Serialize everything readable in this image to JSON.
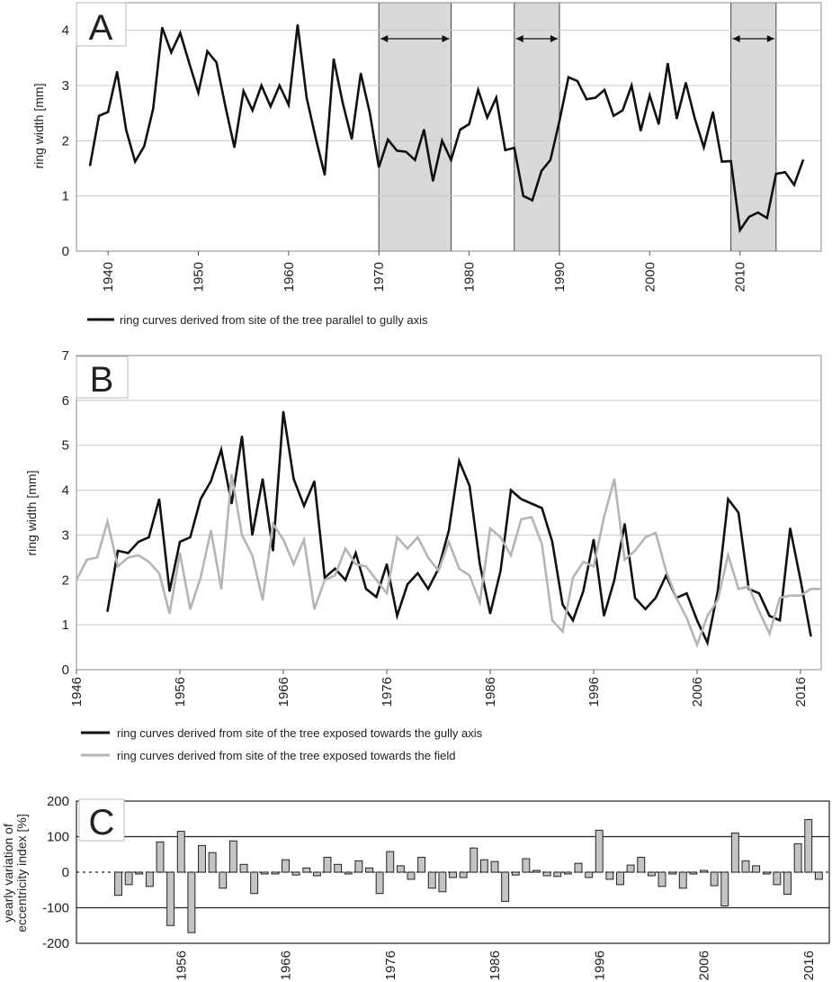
{
  "chart_data": [
    {
      "panel": "A",
      "type": "line",
      "ylabel": "ring width [mm]",
      "ylim": [
        0,
        4.5
      ],
      "yticks": [
        0,
        1,
        2,
        3,
        4
      ],
      "xlim": [
        1936.5,
        2019
      ],
      "xticks": [
        1940,
        1950,
        1960,
        1970,
        1980,
        1990,
        2000,
        2010
      ],
      "shaded_periods": [
        [
          1970,
          1978
        ],
        [
          1985,
          1990
        ],
        [
          2009,
          2014
        ]
      ],
      "series": [
        {
          "name": "ring curves derived from site of the tree parallel to gully axis",
          "color": "#111111",
          "x": [
            1938,
            1939,
            1940,
            1941,
            1942,
            1943,
            1944,
            1945,
            1946,
            1947,
            1948,
            1949,
            1950,
            1951,
            1952,
            1953,
            1954,
            1955,
            1956,
            1957,
            1958,
            1959,
            1960,
            1961,
            1962,
            1963,
            1964,
            1965,
            1966,
            1967,
            1968,
            1969,
            1970,
            1971,
            1972,
            1973,
            1974,
            1975,
            1976,
            1977,
            1978,
            1979,
            1980,
            1981,
            1982,
            1983,
            1984,
            1985,
            1986,
            1987,
            1988,
            1989,
            1990,
            1991,
            1992,
            1993,
            1994,
            1995,
            1996,
            1997,
            1998,
            1999,
            2000,
            2001,
            2002,
            2003,
            2004,
            2005,
            2006,
            2007,
            2008,
            2009,
            2010,
            2011,
            2012,
            2013,
            2014,
            2015,
            2016,
            2017
          ],
          "values": [
            1.55,
            2.45,
            2.52,
            3.25,
            2.2,
            1.62,
            1.9,
            2.58,
            4.05,
            3.6,
            3.95,
            3.4,
            2.87,
            3.62,
            3.42,
            2.62,
            1.88,
            2.9,
            2.55,
            3.0,
            2.62,
            3.0,
            2.65,
            4.1,
            2.78,
            2.05,
            1.38,
            3.48,
            2.68,
            2.03,
            3.22,
            2.5,
            1.52,
            2.02,
            1.82,
            1.8,
            1.65,
            2.2,
            1.27,
            2.0,
            1.65,
            2.2,
            2.3,
            2.92,
            2.42,
            2.78,
            1.83,
            1.87,
            1.0,
            0.92,
            1.45,
            1.65,
            2.35,
            3.15,
            3.08,
            2.75,
            2.78,
            2.92,
            2.45,
            2.55,
            3.0,
            2.18,
            2.82,
            2.3,
            3.4,
            2.4,
            3.05,
            2.4,
            1.88,
            2.52,
            1.62,
            1.63,
            0.38,
            0.62,
            0.7,
            0.6,
            1.4,
            1.43,
            1.2,
            1.65
          ]
        }
      ]
    },
    {
      "panel": "B",
      "type": "line",
      "ylabel": "ring width [mm]",
      "ylim": [
        0,
        7
      ],
      "yticks": [
        0,
        1,
        2,
        3,
        4,
        5,
        6,
        7
      ],
      "xlim": [
        1946,
        2018
      ],
      "xticks": [
        1946,
        1956,
        1966,
        1976,
        1986,
        1996,
        2006,
        2016
      ],
      "series": [
        {
          "name": "ring curves derived from site of the tree exposed towards the gully axis",
          "color": "#111111",
          "x": [
            1949,
            1950,
            1951,
            1952,
            1953,
            1954,
            1955,
            1956,
            1957,
            1958,
            1959,
            1960,
            1961,
            1962,
            1963,
            1964,
            1965,
            1966,
            1967,
            1968,
            1969,
            1970,
            1971,
            1972,
            1973,
            1974,
            1975,
            1976,
            1977,
            1978,
            1979,
            1980,
            1981,
            1982,
            1983,
            1984,
            1985,
            1986,
            1987,
            1988,
            1989,
            1990,
            1991,
            1992,
            1993,
            1994,
            1995,
            1996,
            1997,
            1998,
            1999,
            2000,
            2001,
            2002,
            2003,
            2004,
            2005,
            2006,
            2007,
            2008,
            2009,
            2010,
            2011,
            2012,
            2013,
            2014,
            2015,
            2016,
            2017
          ],
          "values": [
            1.3,
            2.65,
            2.6,
            2.85,
            2.95,
            3.8,
            1.75,
            2.85,
            2.95,
            3.8,
            4.2,
            4.9,
            3.7,
            5.2,
            3.0,
            4.25,
            2.65,
            5.75,
            4.25,
            3.65,
            4.2,
            2.05,
            2.25,
            2.0,
            2.6,
            1.8,
            1.62,
            2.35,
            1.2,
            1.9,
            2.15,
            1.8,
            2.25,
            3.1,
            4.65,
            4.1,
            2.35,
            1.25,
            2.2,
            4.0,
            3.8,
            3.7,
            3.6,
            2.85,
            1.45,
            1.1,
            1.75,
            2.9,
            1.2,
            2.0,
            3.25,
            1.6,
            1.35,
            1.6,
            2.1,
            1.6,
            1.7,
            1.1,
            0.6,
            1.75,
            3.8,
            3.5,
            1.8,
            1.7,
            1.2,
            1.1,
            3.15,
            2.0,
            0.75
          ]
        },
        {
          "name": "ring curves derived from site of the tree exposed towards the field",
          "color": "#b5b5b5",
          "x": [
            1946,
            1947,
            1948,
            1949,
            1950,
            1951,
            1952,
            1953,
            1954,
            1955,
            1956,
            1957,
            1958,
            1959,
            1960,
            1961,
            1962,
            1963,
            1964,
            1965,
            1966,
            1967,
            1968,
            1969,
            1970,
            1971,
            1972,
            1973,
            1974,
            1975,
            1976,
            1977,
            1978,
            1979,
            1980,
            1981,
            1982,
            1983,
            1984,
            1985,
            1986,
            1987,
            1988,
            1989,
            1990,
            1991,
            1992,
            1993,
            1994,
            1995,
            1996,
            1997,
            1998,
            1999,
            2000,
            2001,
            2002,
            2003,
            2004,
            2005,
            2006,
            2007,
            2008,
            2009,
            2010,
            2011,
            2012,
            2013,
            2014,
            2015,
            2016,
            2017,
            2018
          ],
          "values": [
            2.0,
            2.45,
            2.5,
            3.3,
            2.3,
            2.5,
            2.55,
            2.4,
            2.15,
            1.25,
            2.6,
            1.35,
            2.05,
            3.1,
            1.8,
            4.35,
            3.0,
            2.55,
            1.55,
            3.25,
            2.9,
            2.35,
            2.9,
            1.35,
            2.0,
            2.1,
            2.7,
            2.35,
            2.3,
            2.0,
            1.7,
            2.95,
            2.7,
            2.95,
            2.5,
            2.2,
            2.85,
            2.25,
            2.1,
            1.5,
            3.15,
            2.95,
            2.55,
            3.35,
            3.4,
            2.8,
            1.1,
            0.85,
            2.05,
            2.4,
            2.3,
            3.4,
            4.25,
            2.45,
            2.65,
            2.95,
            3.05,
            2.2,
            1.6,
            1.15,
            0.55,
            1.2,
            1.55,
            2.55,
            1.8,
            1.85,
            1.3,
            0.8,
            1.6,
            1.65,
            1.65,
            1.8,
            1.8
          ]
        }
      ]
    },
    {
      "panel": "C",
      "type": "bar",
      "ylabel": "yearly variation of eccentricity index [%]",
      "ylim": [
        -200,
        200
      ],
      "yticks": [
        -200,
        -100,
        0,
        100,
        200
      ],
      "xlim": [
        1946,
        2018
      ],
      "xticks": [
        1956,
        1966,
        1976,
        1986,
        1996,
        2006,
        2016
      ],
      "x": [
        1950,
        1951,
        1952,
        1953,
        1954,
        1955,
        1956,
        1957,
        1958,
        1959,
        1960,
        1961,
        1962,
        1963,
        1964,
        1965,
        1966,
        1967,
        1968,
        1969,
        1970,
        1971,
        1972,
        1973,
        1974,
        1975,
        1976,
        1977,
        1978,
        1979,
        1980,
        1981,
        1982,
        1983,
        1984,
        1985,
        1986,
        1987,
        1988,
        1989,
        1990,
        1991,
        1992,
        1993,
        1994,
        1995,
        1996,
        1997,
        1998,
        1999,
        2000,
        2001,
        2002,
        2003,
        2004,
        2005,
        2006,
        2007,
        2008,
        2009,
        2010,
        2011,
        2012,
        2013,
        2014,
        2015,
        2016,
        2017
      ],
      "values": [
        -65,
        -35,
        -5,
        -40,
        85,
        -150,
        115,
        -170,
        75,
        55,
        -45,
        88,
        22,
        -60,
        -5,
        -5,
        35,
        -8,
        12,
        -10,
        42,
        22,
        -5,
        32,
        12,
        -60,
        58,
        18,
        -20,
        42,
        -45,
        -55,
        -15,
        -15,
        68,
        35,
        30,
        -82,
        -8,
        38,
        5,
        -10,
        -12,
        -5,
        25,
        -15,
        118,
        -20,
        -35,
        20,
        42,
        -10,
        -40,
        -5,
        -45,
        -5,
        5,
        -38,
        -95,
        110,
        32,
        18,
        -5,
        -35,
        -62,
        80,
        148,
        -20
      ]
    }
  ],
  "legends": {
    "A": [
      "ring curves derived from site of the tree parallel to gully axis"
    ],
    "B": [
      "ring curves derived from site of the tree exposed towards the gully axis",
      "ring curves derived from site of the tree exposed towards the field"
    ]
  },
  "panel_letters": {
    "A": "A",
    "B": "B",
    "C": "C"
  },
  "ylabels": {
    "A": "ring width [mm]",
    "B": "ring width [mm]",
    "C_line1": "yearly variation of",
    "C_line2": "eccentricity index [%]"
  }
}
